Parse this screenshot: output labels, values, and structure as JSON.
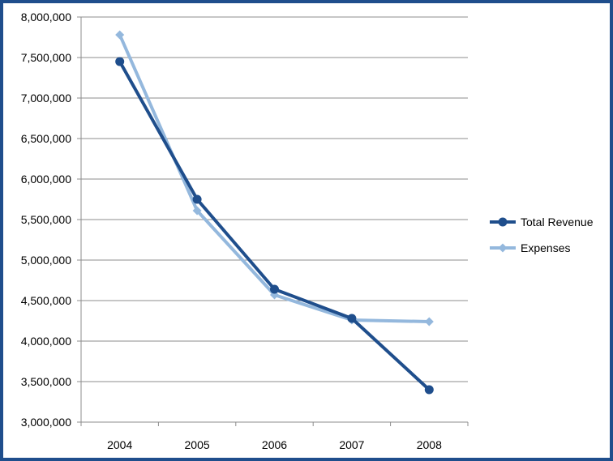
{
  "chart_data": {
    "type": "line",
    "title": "",
    "xlabel": "",
    "ylabel": "",
    "categories": [
      "2004",
      "2005",
      "2006",
      "2007",
      "2008"
    ],
    "ylim": [
      3000000,
      8000000
    ],
    "yticks": [
      3000000,
      3500000,
      4000000,
      4500000,
      5000000,
      5500000,
      6000000,
      6500000,
      7000000,
      7500000,
      8000000
    ],
    "ytick_labels": [
      "3,000,000",
      "3,500,000",
      "4,000,000",
      "4,500,000",
      "5,000,000",
      "5,500,000",
      "6,000,000",
      "6,500,000",
      "7,000,000",
      "7,500,000",
      "8,000,000"
    ],
    "grid": true,
    "legend_position": "right",
    "series": [
      {
        "name": "Total Revenue",
        "values": [
          7450000,
          5750000,
          4640000,
          4280000,
          3400000
        ],
        "color": "#1f4e8c",
        "marker": "circle"
      },
      {
        "name": "Expenses",
        "values": [
          7780000,
          5610000,
          4570000,
          4260000,
          4240000
        ],
        "color": "#94b8dd",
        "marker": "diamond"
      }
    ]
  }
}
